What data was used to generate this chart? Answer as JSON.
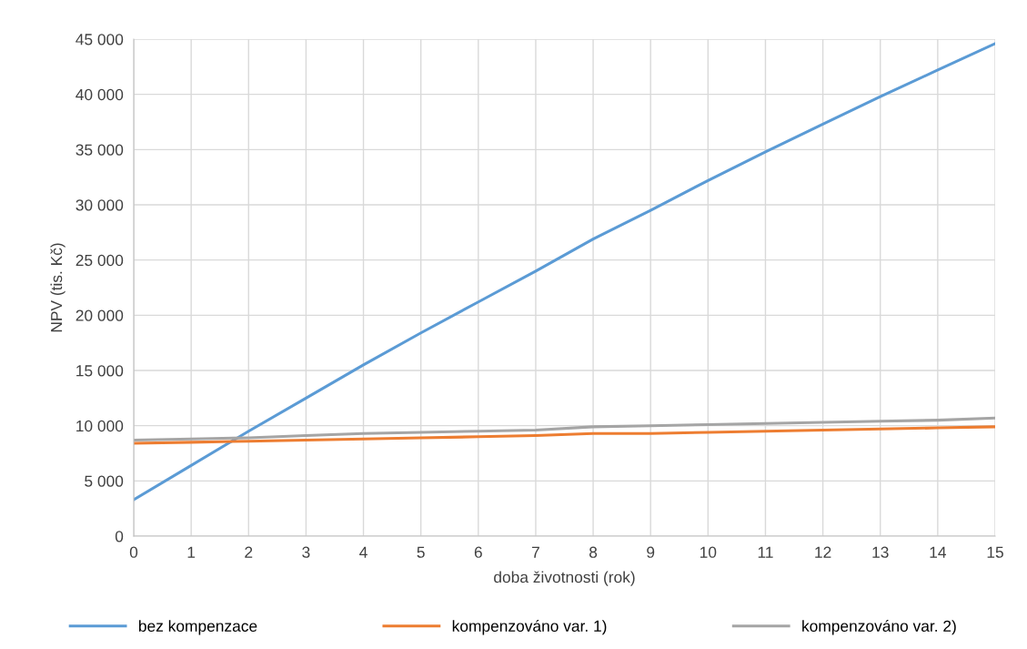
{
  "chart_data": {
    "type": "line",
    "xlabel": "doba životnosti (rok)",
    "ylabel": "NPV (tis. Kč)",
    "x": [
      0,
      1,
      2,
      3,
      4,
      5,
      6,
      7,
      8,
      9,
      10,
      11,
      12,
      13,
      14,
      15
    ],
    "series": [
      {
        "name": "bez kompenzace",
        "color": "#5b9bd5",
        "values": [
          3300,
          6400,
          9500,
          12500,
          15500,
          18400,
          21200,
          24000,
          26900,
          29500,
          32200,
          34800,
          37300,
          39800,
          42200,
          44600
        ]
      },
      {
        "name": "kompenzováno var. 1)",
        "color": "#ed7d31",
        "values": [
          8400,
          8500,
          8600,
          8700,
          8800,
          8900,
          9000,
          9100,
          9300,
          9300,
          9400,
          9500,
          9600,
          9700,
          9800,
          9900
        ]
      },
      {
        "name": "kompenzováno var. 2)",
        "color": "#a5a5a5",
        "values": [
          8700,
          8800,
          8900,
          9100,
          9300,
          9400,
          9500,
          9600,
          9900,
          10000,
          10100,
          10200,
          10300,
          10400,
          10500,
          10700
        ]
      }
    ],
    "xlim": [
      0,
      15
    ],
    "xticks": [
      0,
      1,
      2,
      3,
      4,
      5,
      6,
      7,
      8,
      9,
      10,
      11,
      12,
      13,
      14,
      15
    ],
    "ylim": [
      0,
      45000
    ],
    "yticks": [
      {
        "value": 0,
        "label": "0"
      },
      {
        "value": 5000,
        "label": "5 000"
      },
      {
        "value": 10000,
        "label": "10 000"
      },
      {
        "value": 15000,
        "label": "15 000"
      },
      {
        "value": 20000,
        "label": "20 000"
      },
      {
        "value": 25000,
        "label": "25 000"
      },
      {
        "value": 30000,
        "label": "30 000"
      },
      {
        "value": 35000,
        "label": "35 000"
      },
      {
        "value": 40000,
        "label": "40 000"
      },
      {
        "value": 45000,
        "label": "45 000"
      }
    ],
    "grid": true,
    "legend": "bottom",
    "marker": "none",
    "line_style": "solid"
  }
}
